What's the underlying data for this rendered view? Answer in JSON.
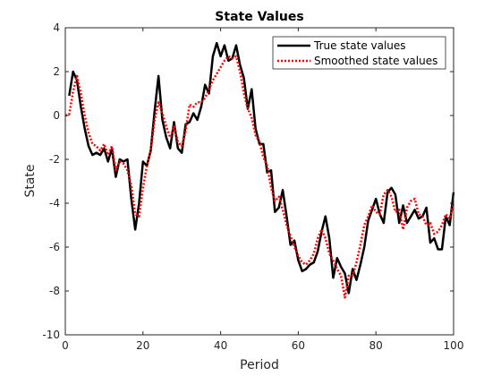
{
  "chart_data": {
    "type": "line",
    "title": "State Values",
    "xlabel": "Period",
    "ylabel": "State",
    "xlim": [
      0,
      100
    ],
    "ylim": [
      -10,
      4
    ],
    "xticks": [
      0,
      20,
      40,
      60,
      80,
      100
    ],
    "yticks": [
      -10,
      -8,
      -6,
      -4,
      -2,
      0,
      2,
      4
    ],
    "legend_position": "top-right",
    "grid": false,
    "series": [
      {
        "name": "True state values",
        "color": "#000000",
        "style": "solid",
        "x": [
          1,
          2,
          3,
          4,
          5,
          6,
          7,
          8,
          9,
          10,
          11,
          12,
          13,
          14,
          15,
          16,
          17,
          18,
          19,
          20,
          21,
          22,
          23,
          24,
          25,
          26,
          27,
          28,
          29,
          30,
          31,
          32,
          33,
          34,
          35,
          36,
          37,
          38,
          39,
          40,
          41,
          42,
          43,
          44,
          45,
          46,
          47,
          48,
          49,
          50,
          51,
          52,
          53,
          54,
          55,
          56,
          57,
          58,
          59,
          60,
          61,
          62,
          63,
          64,
          65,
          66,
          67,
          68,
          69,
          70,
          71,
          72,
          73,
          74,
          75,
          76,
          77,
          78,
          79,
          80,
          81,
          82,
          83,
          84,
          85,
          86,
          87,
          88,
          89,
          90,
          91,
          92,
          93,
          94,
          95,
          96,
          97,
          98,
          99,
          100
        ],
        "values": [
          0.9,
          2.0,
          1.6,
          0.4,
          -0.6,
          -1.4,
          -1.8,
          -1.7,
          -1.8,
          -1.5,
          -2.1,
          -1.5,
          -2.8,
          -2.0,
          -2.1,
          -2.0,
          -3.8,
          -5.2,
          -4.0,
          -2.1,
          -2.3,
          -1.6,
          0.2,
          1.8,
          -0.2,
          -1.0,
          -1.5,
          -0.3,
          -1.5,
          -1.7,
          -0.4,
          -0.3,
          0.1,
          -0.2,
          0.4,
          1.4,
          1.0,
          2.7,
          3.3,
          2.7,
          3.2,
          2.5,
          2.6,
          3.2,
          2.3,
          1.7,
          0.3,
          1.2,
          -0.6,
          -1.3,
          -1.3,
          -2.6,
          -2.5,
          -4.4,
          -4.2,
          -3.4,
          -4.6,
          -5.9,
          -5.7,
          -6.6,
          -7.1,
          -7.0,
          -6.8,
          -6.7,
          -6.2,
          -5.3,
          -4.6,
          -5.6,
          -7.4,
          -6.5,
          -6.9,
          -7.2,
          -8.1,
          -7.0,
          -7.5,
          -6.8,
          -6.0,
          -4.8,
          -4.3,
          -3.8,
          -4.5,
          -4.9,
          -3.5,
          -3.3,
          -3.6,
          -4.9,
          -4.1,
          -4.9,
          -4.6,
          -4.3,
          -4.7,
          -4.6,
          -4.2,
          -5.8,
          -5.6,
          -6.1,
          -6.1,
          -4.6,
          -5.0,
          -3.5
        ]
      },
      {
        "name": "Smoothed state values",
        "color": "#ff0000",
        "style": "dotted",
        "x": [
          0,
          1,
          2,
          3,
          4,
          5,
          6,
          7,
          8,
          9,
          10,
          11,
          12,
          13,
          14,
          15,
          16,
          17,
          18,
          19,
          20,
          21,
          22,
          23,
          24,
          25,
          26,
          27,
          28,
          29,
          30,
          31,
          32,
          33,
          34,
          35,
          36,
          37,
          38,
          39,
          40,
          41,
          42,
          43,
          44,
          45,
          46,
          47,
          48,
          49,
          50,
          51,
          52,
          53,
          54,
          55,
          56,
          57,
          58,
          59,
          60,
          61,
          62,
          63,
          64,
          65,
          66,
          67,
          68,
          69,
          70,
          71,
          72,
          73,
          74,
          75,
          76,
          77,
          78,
          79,
          80,
          81,
          82,
          83,
          84,
          85,
          86,
          87,
          88,
          89,
          90,
          91,
          92,
          93,
          94,
          95,
          96,
          97,
          98,
          99,
          100
        ],
        "values": [
          0.0,
          0.05,
          1.1,
          1.8,
          1.0,
          0.0,
          -0.8,
          -1.3,
          -1.4,
          -1.6,
          -1.3,
          -1.8,
          -1.4,
          -2.5,
          -2.1,
          -2.2,
          -2.5,
          -3.2,
          -4.5,
          -4.6,
          -3.3,
          -2.3,
          -1.6,
          -0.2,
          0.6,
          0.1,
          -0.5,
          -1.0,
          -0.5,
          -1.2,
          -1.4,
          -0.7,
          0.5,
          0.4,
          0.6,
          0.6,
          0.8,
          1.2,
          1.6,
          1.9,
          2.2,
          2.5,
          2.7,
          2.6,
          2.7,
          2.0,
          1.0,
          0.3,
          -0.1,
          -0.9,
          -1.2,
          -1.9,
          -2.3,
          -3.3,
          -3.9,
          -3.7,
          -4.3,
          -5.0,
          -5.5,
          -6.0,
          -6.4,
          -6.7,
          -6.8,
          -6.6,
          -6.3,
          -5.6,
          -5.2,
          -5.6,
          -6.3,
          -6.6,
          -7.0,
          -7.3,
          -8.3,
          -7.3,
          -7.3,
          -6.7,
          -5.9,
          -5.0,
          -4.6,
          -4.1,
          -4.4,
          -4.5,
          -3.6,
          -3.4,
          -3.7,
          -4.4,
          -4.3,
          -5.2,
          -4.2,
          -3.9,
          -3.8,
          -4.5,
          -4.6,
          -5.0,
          -4.9,
          -5.4,
          -5.3,
          -5.0,
          -4.5,
          -4.7,
          -4.0
        ]
      }
    ]
  }
}
